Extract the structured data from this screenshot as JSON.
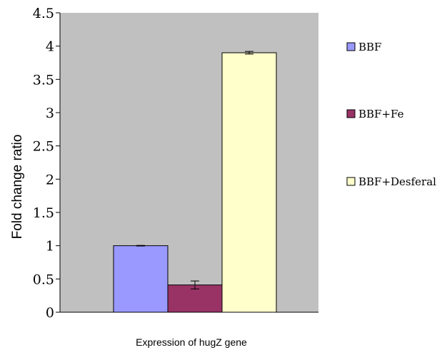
{
  "chart_data": {
    "type": "bar",
    "title": "",
    "xlabel": "Expression of hugZ gene",
    "ylabel": "Fold change ratio",
    "ylim": [
      0,
      4.5
    ],
    "yticks": [
      0,
      0.5,
      1,
      1.5,
      2,
      2.5,
      3,
      3.5,
      4,
      4.5
    ],
    "ytick_labels": [
      "0",
      "0.5",
      "1",
      "1.5",
      "2",
      "2.5",
      "3",
      "3.5",
      "4",
      "4.5"
    ],
    "grid": false,
    "legend_position": "right",
    "plot_background": "#C0C0C0",
    "series": [
      {
        "name": "BBF",
        "value": 1.0,
        "error": 0.005,
        "color": "#9999FF"
      },
      {
        "name": "BBF+Fe",
        "value": 0.41,
        "error": 0.06,
        "color": "#993366"
      },
      {
        "name": "BBF+Desferal",
        "value": 3.9,
        "error": 0.02,
        "color": "#FFFFCC"
      }
    ]
  }
}
